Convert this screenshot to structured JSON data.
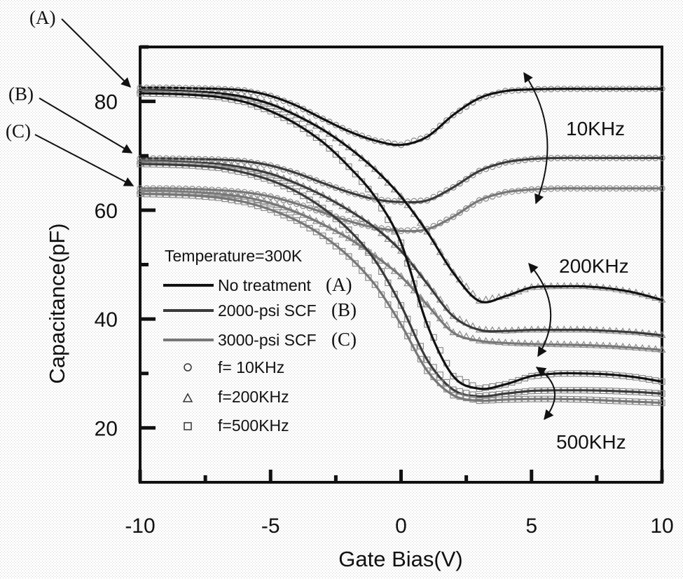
{
  "chart_data": {
    "type": "line",
    "title": "",
    "xlabel": "Gate Bias(V)",
    "ylabel": "Capacitance(pF)",
    "xlim": [
      -10,
      10
    ],
    "ylim": [
      10,
      90
    ],
    "x_ticks": [
      -10,
      -5,
      0,
      5,
      10
    ],
    "y_ticks": [
      20,
      40,
      60,
      80
    ],
    "x_tick_labels": [
      "-10",
      "-5",
      "0",
      "5",
      "10"
    ],
    "y_tick_labels": [
      "20",
      "40",
      "60",
      "80"
    ],
    "grid": false,
    "x": [
      -10,
      -9,
      -8,
      -7,
      -6,
      -5,
      -4,
      -3,
      -2,
      -1,
      0,
      1,
      2,
      3,
      4,
      5,
      6,
      7,
      8,
      9,
      10
    ],
    "series": [
      {
        "group": "A",
        "freq": "10KHz",
        "color": "#111111",
        "values": [
          82.5,
          82.5,
          82.4,
          82.3,
          82.0,
          81.0,
          79.2,
          76.8,
          74.5,
          72.8,
          72.0,
          73.5,
          77.5,
          80.6,
          81.9,
          82.2,
          82.3,
          82.3,
          82.3,
          82.3,
          82.3
        ]
      },
      {
        "group": "B",
        "freq": "10KHz",
        "color": "#3a3a3a",
        "values": [
          69.5,
          69.5,
          69.4,
          69.3,
          69.0,
          68.2,
          66.8,
          65.0,
          63.3,
          62.0,
          61.5,
          61.8,
          64.2,
          67.2,
          68.8,
          69.4,
          69.6,
          69.6,
          69.6,
          69.6,
          69.6
        ]
      },
      {
        "group": "C",
        "freq": "10KHz",
        "color": "#777777",
        "values": [
          64.0,
          64.0,
          63.9,
          63.7,
          63.3,
          62.5,
          61.2,
          59.6,
          58.0,
          56.8,
          56.2,
          56.5,
          58.8,
          61.8,
          63.3,
          63.8,
          64.0,
          64.0,
          64.0,
          64.0,
          64.0
        ]
      },
      {
        "group": "A",
        "freq": "200KHz",
        "color": "#111111",
        "values": [
          82.0,
          82.0,
          81.8,
          81.5,
          80.8,
          79.5,
          77.4,
          74.8,
          71.5,
          67.5,
          62.5,
          56.0,
          48.5,
          43.3,
          44.2,
          45.8,
          46.0,
          46.0,
          45.6,
          44.8,
          43.5
        ]
      },
      {
        "group": "B",
        "freq": "200KHz",
        "color": "#3a3a3a",
        "values": [
          69.0,
          69.0,
          68.8,
          68.5,
          67.8,
          66.7,
          64.9,
          62.7,
          60.0,
          56.8,
          52.5,
          46.5,
          40.5,
          38.0,
          37.8,
          38.0,
          38.0,
          38.0,
          37.8,
          37.5,
          37.0
        ]
      },
      {
        "group": "C",
        "freq": "200KHz",
        "color": "#777777",
        "values": [
          63.5,
          63.5,
          63.3,
          63.0,
          62.4,
          61.3,
          59.6,
          57.4,
          54.8,
          51.6,
          47.8,
          42.6,
          37.5,
          36.0,
          35.6,
          35.4,
          35.3,
          35.2,
          35.0,
          34.7,
          34.3
        ]
      },
      {
        "group": "A",
        "freq": "500KHz",
        "color": "#111111",
        "values": [
          81.5,
          81.4,
          81.2,
          80.8,
          79.9,
          78.2,
          75.8,
          72.5,
          68.0,
          62.5,
          54.0,
          39.0,
          29.5,
          27.2,
          28.0,
          29.5,
          30.0,
          30.0,
          29.8,
          29.3,
          28.5
        ]
      },
      {
        "group": "B",
        "freq": "500KHz",
        "color": "#3a3a3a",
        "values": [
          68.5,
          68.4,
          68.2,
          67.8,
          66.9,
          65.5,
          63.4,
          60.4,
          56.4,
          50.8,
          42.5,
          32.5,
          27.0,
          25.8,
          26.3,
          26.8,
          26.9,
          26.9,
          26.8,
          26.6,
          26.3
        ]
      },
      {
        "group": "C",
        "freq": "500KHz",
        "color": "#777777",
        "values": [
          63.0,
          62.9,
          62.7,
          62.3,
          61.5,
          60.1,
          58.1,
          55.3,
          51.5,
          46.3,
          39.0,
          30.5,
          26.0,
          25.0,
          25.2,
          25.3,
          25.3,
          25.2,
          25.0,
          24.8,
          24.6
        ]
      }
    ],
    "frequency_labels": [
      "10KHz",
      "200KHz",
      "500KHz"
    ],
    "legend": {
      "placement": "center-left",
      "title": "Temperature=300K",
      "line_entries": [
        {
          "label": "No treatment",
          "tag": "(A)",
          "color": "#111111"
        },
        {
          "label": "2000-psi SCF",
          "tag": "(B)",
          "color": "#3a3a3a"
        },
        {
          "label": "3000-psi SCF",
          "tag": "(C)",
          "color": "#777777"
        }
      ],
      "marker_entries": [
        {
          "label": "f=  10KHz",
          "marker": "circle"
        },
        {
          "label": "f=200KHz",
          "marker": "triangle"
        },
        {
          "label": "f=500KHz",
          "marker": "square"
        }
      ]
    },
    "curve_labels": [
      "(A)",
      "(B)",
      "(C)"
    ]
  }
}
